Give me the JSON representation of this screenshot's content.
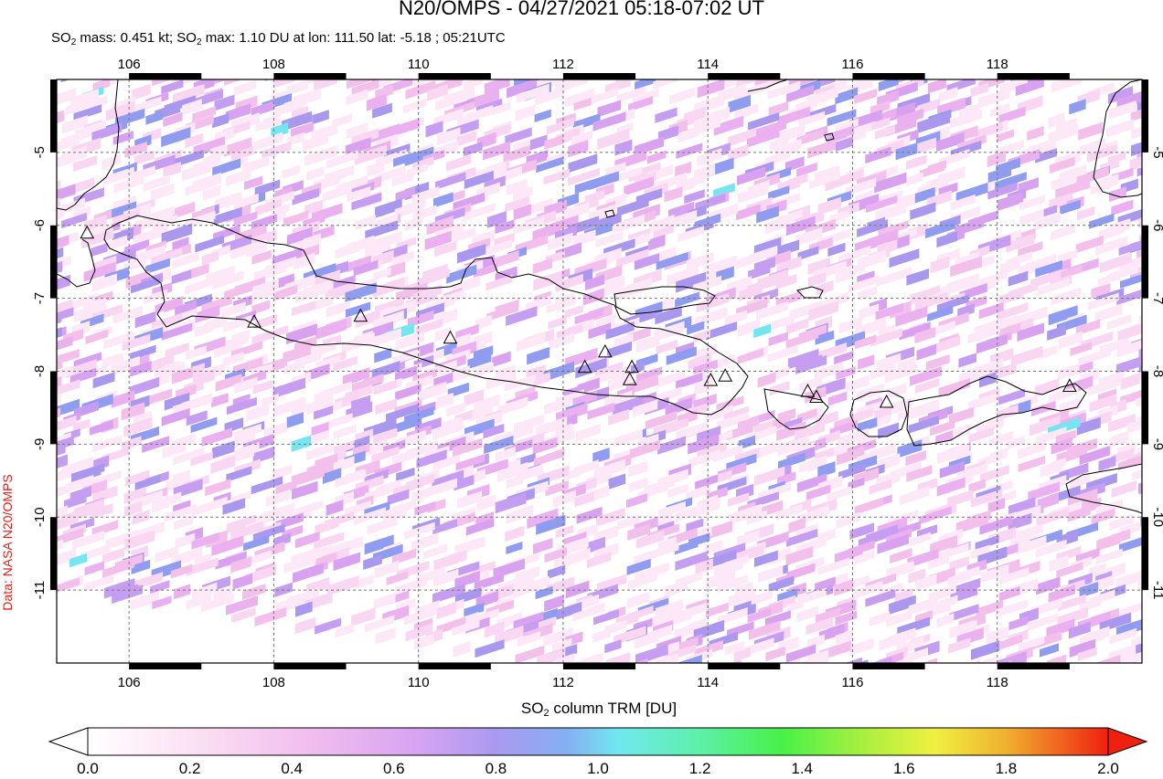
{
  "title": "N20/OMPS - 04/27/2021 05:18-07:02 UT",
  "subtitle": {
    "so2_mass_prefix": "SO",
    "so2_mass_text": " mass: 0.451 kt; SO",
    "so2_max_text": " max: 1.10 DU at lon: 111.50 lat: -5.18 ; 05:21UTC",
    "sub2": "2"
  },
  "credit": "Data: NASA N20/OMPS",
  "map": {
    "lon_range": [
      105.0,
      120.0
    ],
    "lat_range": [
      -12.0,
      -4.0
    ],
    "lon_ticks": [
      "106",
      "108",
      "110",
      "112",
      "114",
      "116",
      "118"
    ],
    "lat_ticks": [
      "-5",
      "-6",
      "-7",
      "-8",
      "-9",
      "-10",
      "-11"
    ],
    "volcanoes_lonlat": [
      [
        105.42,
        -6.1
      ],
      [
        107.73,
        -7.32
      ],
      [
        109.2,
        -7.24
      ],
      [
        110.44,
        -7.54
      ],
      [
        112.3,
        -7.94
      ],
      [
        112.58,
        -7.73
      ],
      [
        112.95,
        -7.94
      ],
      [
        112.92,
        -8.11
      ],
      [
        114.04,
        -8.12
      ],
      [
        114.24,
        -8.06
      ],
      [
        115.38,
        -8.27
      ],
      [
        115.5,
        -8.35
      ],
      [
        116.47,
        -8.42
      ],
      [
        119.0,
        -8.2
      ]
    ],
    "legend_colors": [
      "#ffffff",
      "#fbe6f4",
      "#f6c8ee",
      "#e3aaf2",
      "#c39af0",
      "#9c95ef",
      "#7aaef0",
      "#6fe8f0",
      "#59f0a6",
      "#4af050",
      "#a8f040",
      "#f0f040",
      "#f0b030",
      "#f06020",
      "#f02010"
    ]
  },
  "colorbar": {
    "label_prefix": "SO",
    "label_sub": "2",
    "label_suffix": " column TRM [DU]",
    "ticks": [
      "0.0",
      "0.2",
      "0.4",
      "0.6",
      "0.8",
      "1.0",
      "1.2",
      "1.4",
      "1.6",
      "1.8",
      "2.0"
    ]
  }
}
